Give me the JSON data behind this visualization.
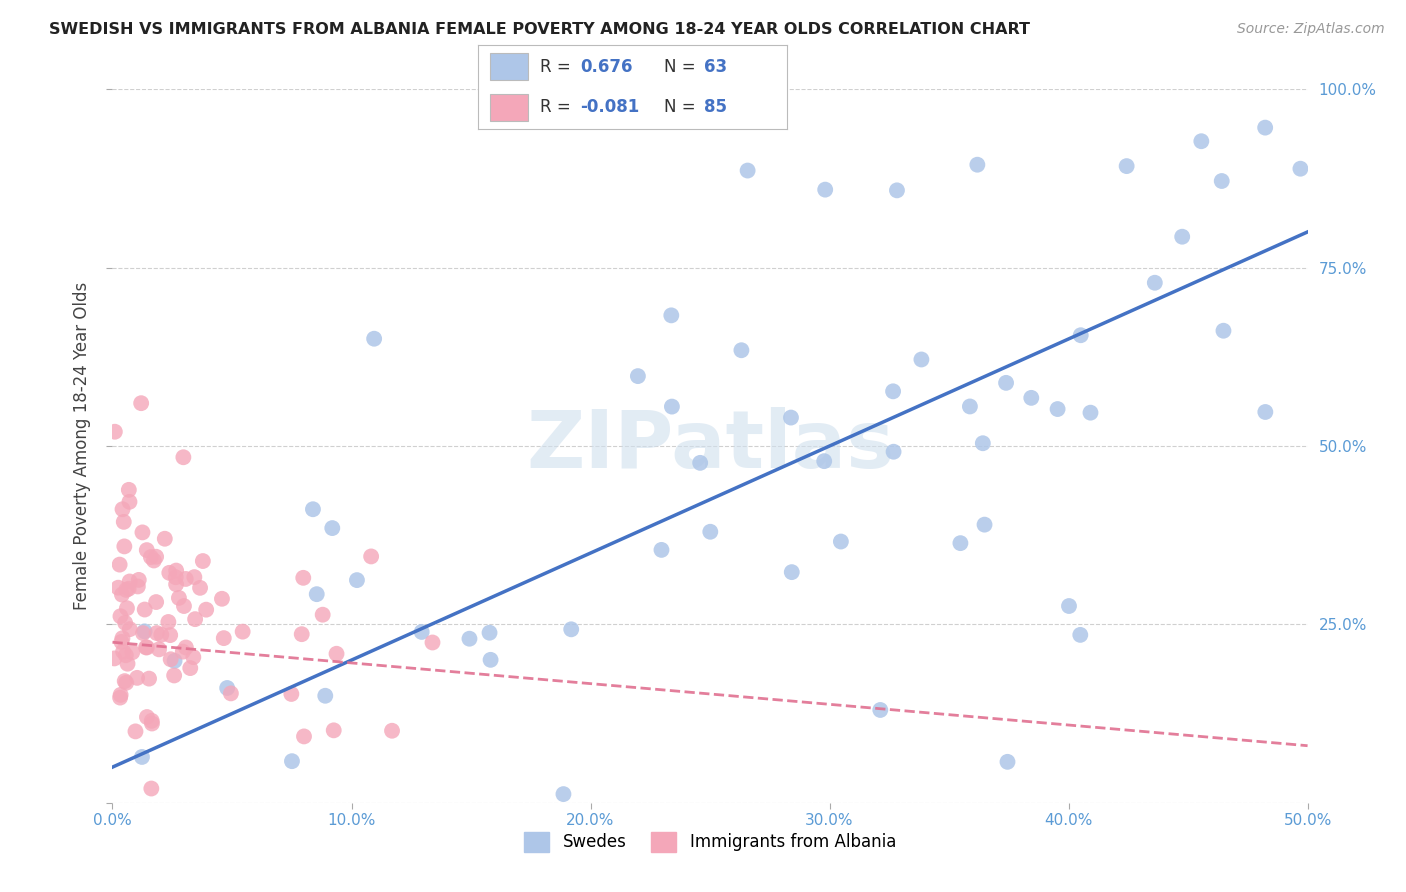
{
  "title": "SWEDISH VS IMMIGRANTS FROM ALBANIA FEMALE POVERTY AMONG 18-24 YEAR OLDS CORRELATION CHART",
  "source": "Source: ZipAtlas.com",
  "ylabel": "Female Poverty Among 18-24 Year Olds",
  "xlim": [
    0.0,
    0.5
  ],
  "ylim": [
    0.0,
    1.0
  ],
  "swedes_R": 0.676,
  "swedes_N": 63,
  "albania_R": -0.081,
  "albania_N": 85,
  "swede_color": "#aec6e8",
  "albania_color": "#f4a7b9",
  "swede_line_color": "#4472c4",
  "albania_line_color": "#e07090",
  "watermark": "ZIPatlas",
  "bg_color": "#ffffff",
  "grid_color": "#d0d0d0",
  "right_tick_color": "#5b9bd5",
  "xtick_color": "#5b9bd5",
  "ytick_color": "#5b9bd5"
}
